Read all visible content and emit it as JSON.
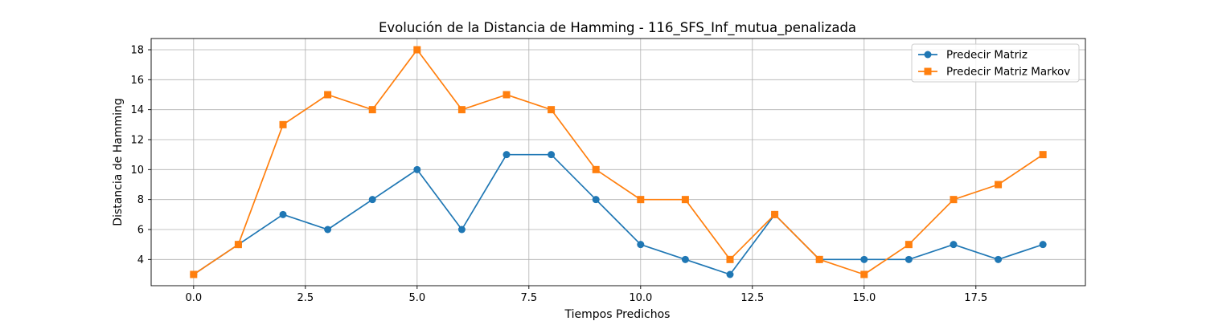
{
  "chart_data": {
    "type": "line",
    "title": "Evolución de la Distancia de Hamming - 116_SFS_Inf_mutua_penalizada",
    "xlabel": "Tiempos Predichos",
    "ylabel": "Distancia de Hamming",
    "xlim": [
      -0.95,
      19.95
    ],
    "ylim": [
      2.25,
      18.75
    ],
    "xticks": [
      0.0,
      2.5,
      5.0,
      7.5,
      10.0,
      12.5,
      15.0,
      17.5
    ],
    "xtick_labels": [
      "0.0",
      "2.5",
      "5.0",
      "7.5",
      "10.0",
      "12.5",
      "15.0",
      "17.5"
    ],
    "yticks": [
      4,
      6,
      8,
      10,
      12,
      14,
      16,
      18
    ],
    "ytick_labels": [
      "4",
      "6",
      "8",
      "10",
      "12",
      "14",
      "16",
      "18"
    ],
    "grid": true,
    "legend_position": "top-right",
    "x": [
      0,
      1,
      2,
      3,
      4,
      5,
      6,
      7,
      8,
      9,
      10,
      11,
      12,
      13,
      14,
      15,
      16,
      17,
      18,
      19
    ],
    "series": [
      {
        "name": "Predecir Matriz",
        "color": "#1f77b4",
        "marker": "circle",
        "values": [
          3,
          5,
          7,
          6,
          8,
          10,
          6,
          11,
          11,
          8,
          5,
          4,
          3,
          7,
          4,
          4,
          4,
          5,
          4,
          5
        ]
      },
      {
        "name": "Predecir Matriz Markov",
        "color": "#ff7f0e",
        "marker": "square",
        "values": [
          3,
          5,
          13,
          15,
          14,
          18,
          14,
          15,
          14,
          10,
          8,
          8,
          4,
          7,
          4,
          3,
          5,
          8,
          9,
          11
        ]
      }
    ]
  }
}
